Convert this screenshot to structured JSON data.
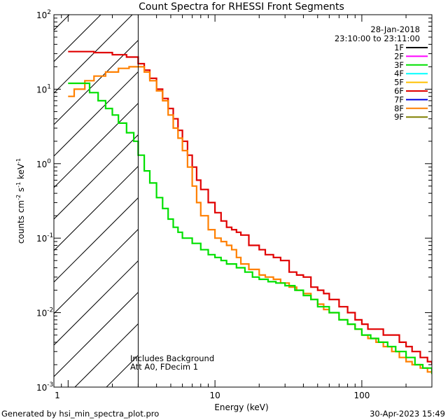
{
  "chart_data": {
    "type": "line",
    "title": "Count Spectra for RHESSI Front Segments",
    "xlabel": "Energy (keV)",
    "ylabel_parts": [
      "counts cm",
      "-2",
      " s",
      "-1",
      " keV",
      "-1"
    ],
    "xscale": "log",
    "yscale": "log",
    "xlim": [
      0.8,
      300
    ],
    "ylim": [
      0.001,
      100
    ],
    "x_ticks": [
      {
        "value": 10,
        "label": "10"
      },
      {
        "value": 100,
        "label": "100"
      }
    ],
    "x_tick_1_label": "1",
    "y_ticks": [
      {
        "value": 0.001,
        "base": "10",
        "exp": "-3"
      },
      {
        "value": 0.01,
        "base": "10",
        "exp": "-2"
      },
      {
        "value": 0.1,
        "base": "10",
        "exp": "-1"
      },
      {
        "value": 1,
        "base": "10",
        "exp": "0"
      },
      {
        "value": 10,
        "base": "10",
        "exp": "1"
      },
      {
        "value": 100,
        "base": "10",
        "exp": "2"
      }
    ],
    "date": "28-Jan-2018",
    "time_range": "23:10:00 to 23:11:00",
    "legend": [
      {
        "label": "1F",
        "color": "#000000"
      },
      {
        "label": "2F",
        "color": "#ff00ff"
      },
      {
        "label": "3F",
        "color": "#00e000"
      },
      {
        "label": "4F",
        "color": "#00ffff"
      },
      {
        "label": "5F",
        "color": "#ffc000"
      },
      {
        "label": "6F",
        "color": "#e00000"
      },
      {
        "label": "7F",
        "color": "#0000e0"
      },
      {
        "label": "8F",
        "color": "#ff8000"
      },
      {
        "label": "9F",
        "color": "#808000"
      }
    ],
    "attenuator_cutoff_kev": 3,
    "annotations": [
      "Includes Background",
      "Att A0, FDecim 1"
    ],
    "series": [
      {
        "name": "6F",
        "color": "#e00000",
        "x": [
          1.0,
          1.2,
          1.5,
          2.0,
          2.5,
          3.0,
          3.3,
          3.6,
          4.0,
          4.4,
          4.8,
          5.2,
          5.6,
          6.0,
          6.5,
          7.0,
          7.5,
          8.0,
          9.0,
          10,
          11,
          12,
          13,
          14,
          15,
          17,
          20,
          22,
          25,
          28,
          32,
          36,
          40,
          45,
          50,
          55,
          60,
          70,
          80,
          90,
          100,
          110,
          125,
          140,
          160,
          180,
          200,
          220,
          250,
          280,
          300
        ],
        "values": [
          32,
          32,
          31,
          29,
          27,
          22,
          18,
          14,
          10,
          7.5,
          5.5,
          4.0,
          2.8,
          2.0,
          1.3,
          0.9,
          0.6,
          0.45,
          0.3,
          0.22,
          0.17,
          0.14,
          0.13,
          0.12,
          0.11,
          0.08,
          0.07,
          0.06,
          0.055,
          0.05,
          0.035,
          0.032,
          0.03,
          0.022,
          0.02,
          0.018,
          0.015,
          0.012,
          0.01,
          0.008,
          0.007,
          0.006,
          0.006,
          0.005,
          0.005,
          0.004,
          0.0035,
          0.003,
          0.0025,
          0.0022,
          0.002
        ]
      },
      {
        "name": "8F",
        "color": "#ff8000",
        "x": [
          1.0,
          1.1,
          1.3,
          1.5,
          1.8,
          2.2,
          2.6,
          3.0,
          3.3,
          3.6,
          4.0,
          4.4,
          4.8,
          5.2,
          5.6,
          6.0,
          6.5,
          7.0,
          7.5,
          8.0,
          9.0,
          10,
          11,
          12,
          13,
          14,
          15,
          17,
          20,
          22,
          25,
          28,
          32,
          36,
          40,
          45,
          50,
          55,
          60,
          70,
          80,
          90,
          100,
          110,
          125,
          140,
          160,
          180,
          200,
          220,
          250,
          280,
          300
        ],
        "values": [
          8,
          10,
          13,
          15,
          17,
          19,
          20,
          20,
          17,
          13,
          9.5,
          7,
          4.5,
          3.0,
          2.2,
          1.5,
          0.9,
          0.5,
          0.3,
          0.2,
          0.13,
          0.1,
          0.09,
          0.08,
          0.07,
          0.055,
          0.045,
          0.038,
          0.032,
          0.03,
          0.028,
          0.025,
          0.022,
          0.02,
          0.018,
          0.015,
          0.013,
          0.011,
          0.01,
          0.008,
          0.007,
          0.006,
          0.005,
          0.0045,
          0.004,
          0.0035,
          0.003,
          0.0025,
          0.0022,
          0.002,
          0.0018,
          0.0016,
          0.0015
        ]
      },
      {
        "name": "3F",
        "color": "#00e000",
        "x": [
          1.0,
          1.2,
          1.4,
          1.6,
          1.8,
          2.0,
          2.2,
          2.5,
          2.8,
          3.0,
          3.3,
          3.6,
          4.0,
          4.4,
          4.8,
          5.2,
          5.6,
          6.0,
          7.0,
          8.0,
          9.0,
          10,
          11,
          12,
          14,
          16,
          18,
          20,
          23,
          26,
          30,
          35,
          40,
          45,
          50,
          60,
          70,
          80,
          90,
          100,
          115,
          130,
          150,
          170,
          200,
          230,
          260,
          300
        ],
        "values": [
          12,
          12,
          9,
          7,
          5.5,
          4.5,
          3.5,
          2.6,
          2.0,
          1.3,
          0.8,
          0.55,
          0.35,
          0.25,
          0.18,
          0.14,
          0.12,
          0.1,
          0.085,
          0.07,
          0.06,
          0.055,
          0.05,
          0.045,
          0.04,
          0.035,
          0.03,
          0.028,
          0.026,
          0.025,
          0.023,
          0.02,
          0.017,
          0.015,
          0.012,
          0.01,
          0.008,
          0.007,
          0.006,
          0.005,
          0.0045,
          0.004,
          0.0035,
          0.003,
          0.0025,
          0.002,
          0.0018,
          0.0015
        ]
      }
    ]
  },
  "footer": {
    "generated_by": "Generated by hsi_min_spectra_plot.pro",
    "timestamp": "30-Apr-2023 15:49"
  }
}
